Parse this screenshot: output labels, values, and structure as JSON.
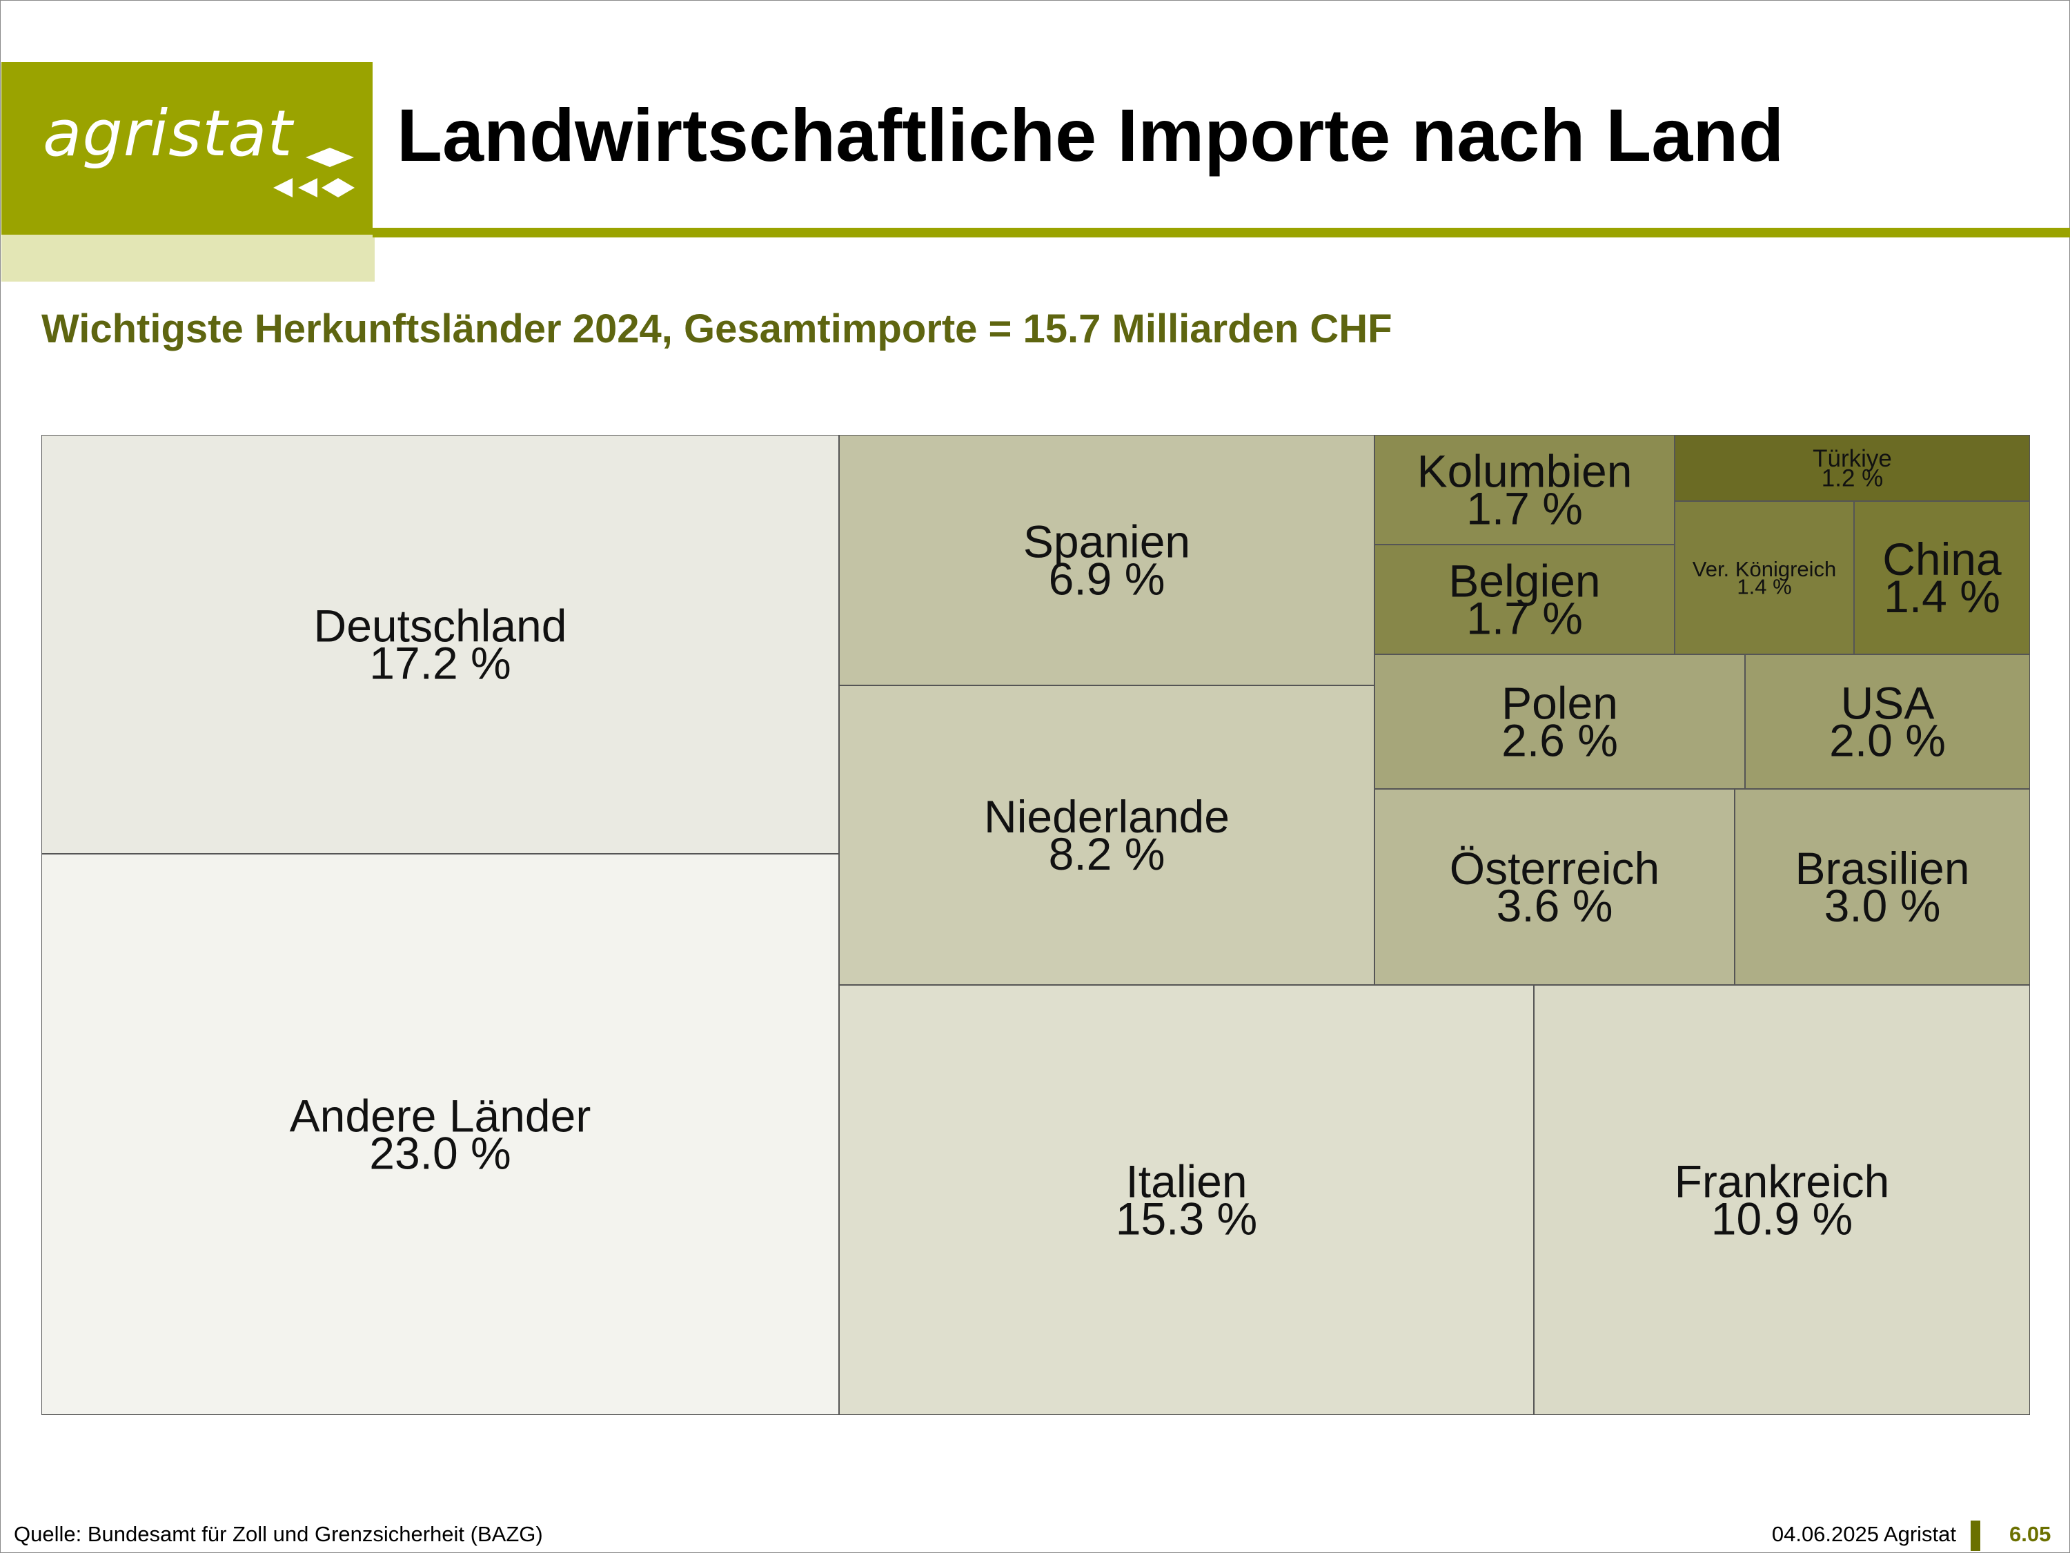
{
  "logo": {
    "text": "agristat"
  },
  "header": {
    "title": "Landwirtschaftliche Importe nach Land"
  },
  "subtitle": "Wichtigste Herkunftsländer 2024, Gesamtimporte = 15.7 Milliarden CHF",
  "footer": {
    "source": "Quelle: Bundesamt für Zoll und Grenzsicherheit (BAZG)",
    "date": "04.06.2025 Agristat",
    "page": "6.05"
  },
  "chart_data": {
    "type": "treemap",
    "title": "Wichtigste Herkunftsländer 2024, Gesamtimporte = 15.7 Milliarden CHF",
    "unit": "%",
    "items": [
      {
        "name": "Andere Länder",
        "value": 23.0,
        "label": "23.0 %",
        "color": "#f3f3ee"
      },
      {
        "name": "Deutschland",
        "value": 17.2,
        "label": "17.2 %",
        "color": "#eaeae2"
      },
      {
        "name": "Italien",
        "value": 15.3,
        "label": "15.3 %",
        "color": "#dfdfce"
      },
      {
        "name": "Frankreich",
        "value": 10.9,
        "label": "10.9 %",
        "color": "#dadac7"
      },
      {
        "name": "Niederlande",
        "value": 8.2,
        "label": "8.2 %",
        "color": "#cdcdb3"
      },
      {
        "name": "Spanien",
        "value": 6.9,
        "label": "6.9 %",
        "color": "#c3c3a5"
      },
      {
        "name": "Österreich",
        "value": 3.6,
        "label": "3.6 %",
        "color": "#b9b996"
      },
      {
        "name": "Brasilien",
        "value": 3.0,
        "label": "3.0 %",
        "color": "#aeae86"
      },
      {
        "name": "Polen",
        "value": 2.6,
        "label": "2.6 %",
        "color": "#a6a67a"
      },
      {
        "name": "USA",
        "value": 2.0,
        "label": "2.0 %",
        "color": "#9d9d6b"
      },
      {
        "name": "Kolumbien",
        "value": 1.7,
        "label": "1.7 %",
        "color": "#8c8c50"
      },
      {
        "name": "Belgien",
        "value": 1.7,
        "label": "1.7 %",
        "color": "#878749"
      },
      {
        "name": "Ver. Königreich",
        "value": 1.4,
        "label": "1.4 %",
        "color": "#7f7f3d"
      },
      {
        "name": "China",
        "value": 1.4,
        "label": "1.4 %",
        "color": "#7a7a34"
      },
      {
        "name": "Türkiye",
        "value": 1.2,
        "label": "1.2 %",
        "color": "#6b6b24"
      }
    ]
  }
}
